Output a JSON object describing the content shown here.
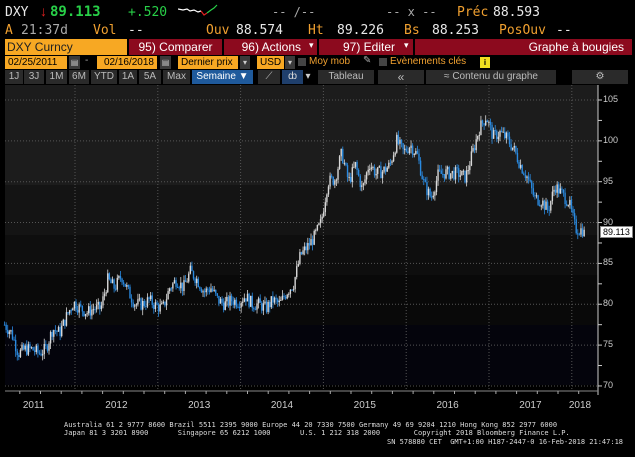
{
  "quote": {
    "ticker": "DXY",
    "last": "89.113",
    "change": "+.520",
    "bid_ask": "-- /--",
    "size": "-- x --",
    "prev_label": "Préc",
    "prev": "88.593",
    "time_prefix": "A",
    "time": "21:37d",
    "vol_label": "Vol",
    "vol": "--",
    "open_label": "Ouv",
    "open": "88.574",
    "high_label": "Ht",
    "high": "89.226",
    "low_label": "Bs",
    "low": "88.253",
    "oi_label": "PosOuv",
    "oi": "--"
  },
  "toolbar": {
    "security": "DXY Curncy",
    "compare": "95) Comparer",
    "actions": "96) Actions",
    "edit": "97) Editer",
    "chart_type": "Graphe à bougies"
  },
  "params": {
    "start_date": "02/25/2011",
    "end_date": "02/16/2018",
    "price_field": "Dernier prix",
    "currency": "USD",
    "moving_avg": "Moy mob",
    "events": "Evènements clés"
  },
  "periods": [
    "1J",
    "3J",
    "1M",
    "6M",
    "YTD",
    "1A",
    "5A",
    "Max"
  ],
  "frequency": "Semaine ▼",
  "table_label": "Tableau",
  "collapse_label": "«",
  "chart_content_label": "Contenu du graphe",
  "colors": {
    "up": "#d8d8d8",
    "down": "#2a8ae0",
    "accent": "#f7a823",
    "bar": "#8c0a1e"
  },
  "chart_data": {
    "type": "candlestick",
    "title": "DXY Curncy",
    "frequency": "weekly",
    "ylim": [
      70,
      106
    ],
    "yticks": [
      70,
      75,
      80,
      85,
      90,
      95,
      100,
      105
    ],
    "x_labels": [
      "2011",
      "2012",
      "2013",
      "2014",
      "2015",
      "2016",
      "2017",
      "2018"
    ],
    "last_value_label": "89.113",
    "monthly_close": {
      "start": "2011-02",
      "values": [
        77.5,
        76.5,
        74,
        74.5,
        74.5,
        74,
        74.5,
        77,
        76.5,
        78.5,
        80.2,
        79.5,
        79,
        79.5,
        79.5,
        83,
        82,
        83.5,
        81.5,
        80,
        80,
        80.5,
        79.8,
        79.5,
        82,
        83,
        82,
        84,
        83,
        81.5,
        82,
        80.5,
        80,
        80.5,
        80.3,
        81,
        80,
        80,
        79.5,
        80.5,
        80,
        81.5,
        82.5,
        86,
        87,
        88.2,
        90,
        95,
        95.3,
        98.5,
        95,
        97,
        94,
        97.3,
        96,
        96.3,
        97,
        100,
        98.6,
        99.5,
        98.2,
        94.6,
        93,
        95.8,
        96.1,
        96,
        96,
        95.5,
        98.5,
        101.5,
        103,
        100.5,
        101,
        100.3,
        99,
        97,
        95.5,
        93,
        92.7,
        91.5,
        94.5,
        93.5,
        92.5,
        89.2,
        89.1
      ]
    }
  },
  "footer": {
    "line1": "Australia 61 2 9777 8600 Brazil 5511 2395 9000 Europe 44 20 7330 7500 Germany 49 69 9204 1210 Hong Kong 852 2977 6000",
    "line2": "Japan 81 3 3201 8900       Singapore 65 6212 1000       U.S. 1 212 318 2000        Copyright 2018 Bloomberg Finance L.P.",
    "line3": "SN 578880 CET  GMT+1:00 H187-2447-0 16-Feb-2018 21:47:18"
  }
}
